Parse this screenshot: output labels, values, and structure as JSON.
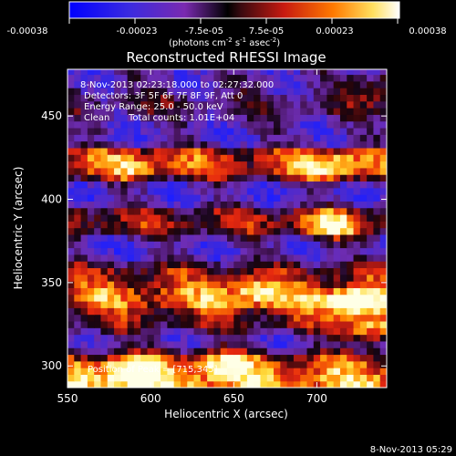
{
  "chart_data": {
    "type": "heatmap",
    "title": "Reconstructed RHESSI Image",
    "xlabel": "Heliocentric X (arcsec)",
    "ylabel": "Heliocentric Y (arcsec)",
    "xlim": [
      550,
      742
    ],
    "ylim": [
      287,
      478
    ],
    "x_ticks": [
      550,
      600,
      650,
      700
    ],
    "y_ticks": [
      300,
      350,
      400,
      450
    ],
    "colorbar": {
      "tick_labels": [
        "-0.00038",
        "-0.00023",
        "-7.5e-05",
        "7.5e-05",
        "0.00023",
        "0.00038"
      ],
      "range": [
        -0.00038,
        0.00038
      ],
      "unit_label": "(photons cm",
      "colors": [
        "#1a1aff",
        "#6a2ad0",
        "#b01f7a",
        "#e81a10",
        "#ff8a00",
        "#ffff80",
        "#ffffff"
      ]
    },
    "annotations": {
      "time_range": "8-Nov-2013 02:23:18.000 to 02:27:32.000",
      "detectors": "Detectors: 3F 5F 6F 7F 8F 9F, Att 0",
      "energy_range": "Energy Range: 25.0 - 50.0 keV",
      "algorithm": "Clean",
      "total_counts": "Total counts: 1.01E+04",
      "peak": "Position of Peak = [715,345]"
    },
    "peak_position": [
      715,
      345
    ],
    "footer_timestamp": "8-Nov-2013 05:29",
    "bright_regions": [
      {
        "x": 718,
        "y": 335,
        "level": 1.0
      },
      {
        "x": 730,
        "y": 318,
        "level": 0.95
      },
      {
        "x": 705,
        "y": 382,
        "level": 0.8
      },
      {
        "x": 708,
        "y": 418,
        "level": 0.75
      },
      {
        "x": 738,
        "y": 465,
        "level": 0.8
      },
      {
        "x": 585,
        "y": 295,
        "level": 0.85
      },
      {
        "x": 640,
        "y": 300,
        "level": 0.7
      },
      {
        "x": 660,
        "y": 343,
        "level": 0.55
      },
      {
        "x": 590,
        "y": 418,
        "level": 0.5
      }
    ],
    "bands": [
      {
        "y": 468,
        "level": -0.45
      },
      {
        "y": 455,
        "level": -0.15
      },
      {
        "y": 440,
        "level": -0.5
      },
      {
        "y": 418,
        "level": 0.35
      },
      {
        "y": 402,
        "level": -0.6
      },
      {
        "y": 385,
        "level": 0.2
      },
      {
        "y": 368,
        "level": -0.55
      },
      {
        "y": 352,
        "level": 0.15
      },
      {
        "y": 340,
        "level": 0.55
      },
      {
        "y": 325,
        "level": 0.1
      },
      {
        "y": 312,
        "level": -0.55
      },
      {
        "y": 300,
        "level": 0.45
      },
      {
        "y": 290,
        "level": 0.7
      }
    ]
  }
}
